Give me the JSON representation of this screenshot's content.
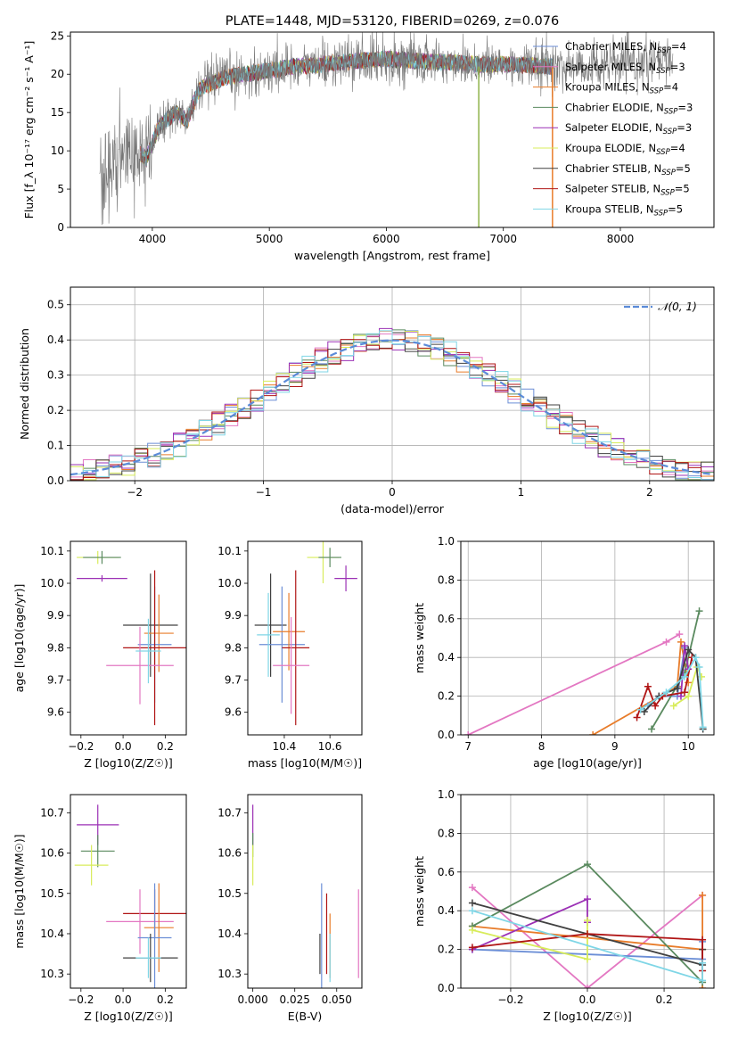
{
  "colors": {
    "Chabrier MILES": "#6b8ed6",
    "Salpeter MILES": "#e377c2",
    "Kroupa MILES": "#e87c2a",
    "Chabrier ELODIE": "#5a8a5f",
    "Salpeter ELODIE": "#9b30b5",
    "Kroupa ELODIE": "#d8ec5b",
    "Chabrier STELIB": "#404040",
    "Salpeter STELIB": "#b01515",
    "Kroupa STELIB": "#7fd6e6"
  },
  "chart_data": [
    {
      "id": "spectrum",
      "type": "line",
      "title": "PLATE=1448, MJD=53120, FIBERID=0269, z=0.076",
      "xlabel": "wavelength [Angstrom, rest frame]",
      "ylabel": "Flux [f_λ 10⁻¹⁷ erg cm⁻² s⁻¹ A⁻¹]",
      "xlim": [
        3300,
        8800
      ],
      "ylim": [
        0,
        25.5
      ],
      "xticks": [
        4000,
        5000,
        6000,
        7000,
        8000
      ],
      "yticks": [
        0,
        5,
        10,
        15,
        20,
        25
      ],
      "legend_position": "right",
      "legend": [
        "Chabrier MILES, N_SSP=4",
        "Salpeter MILES, N_SSP=3",
        "Kroupa MILES, N_SSP=4",
        "Chabrier ELODIE, N_SSP=3",
        "Salpeter ELODIE, N_SSP=3",
        "Kroupa ELODIE, N_SSP=4",
        "Chabrier STELIB, N_SSP=5",
        "Salpeter STELIB, N_SSP=5",
        "Kroupa STELIB, N_SSP=5"
      ],
      "continuum_x": [
        3550,
        3700,
        3850,
        3950,
        4050,
        4200,
        4300,
        4400,
        4600,
        4800,
        5000,
        5200,
        5400,
        5600,
        5800,
        6000,
        6200,
        6400,
        6600,
        6800,
        7000,
        7200,
        7400,
        7600,
        7800,
        8000,
        8200,
        8450
      ],
      "continuum_y": [
        6,
        8.5,
        10,
        9,
        13,
        15,
        14,
        18,
        19.5,
        20,
        20.5,
        21,
        21.2,
        21.5,
        21.8,
        22,
        21.8,
        21.6,
        21.5,
        21.3,
        21.3,
        21.2,
        21,
        21,
        21.2,
        21.3,
        21.5,
        21.8
      ],
      "data_range": [
        3550,
        8450
      ],
      "model_range": [
        3900,
        7420
      ]
    },
    {
      "id": "residuals",
      "type": "line",
      "xlabel": "(data-model)/error",
      "ylabel": "Normed distribution",
      "xlim": [
        -2.5,
        2.5
      ],
      "ylim": [
        0,
        0.55
      ],
      "xticks": [
        -2,
        -1,
        0,
        1,
        2
      ],
      "yticks": [
        0.0,
        0.1,
        0.2,
        0.3,
        0.4,
        0.5
      ],
      "grid": true,
      "legend": [
        "𝒩(0, 1)"
      ],
      "legend_position": "top-right",
      "gaussian": {
        "mean": 0,
        "sigma": 1
      }
    },
    {
      "id": "age_vs_z",
      "type": "scatter",
      "xlabel": "Z [log10(Z/Z☉)]",
      "ylabel": "age  [log10(age/yr)]",
      "xlim": [
        -0.25,
        0.3
      ],
      "ylim": [
        9.53,
        10.13
      ],
      "xticks": [
        -0.2,
        0.0,
        0.2
      ],
      "yticks": [
        9.6,
        9.7,
        9.8,
        9.9,
        10.0,
        10.1
      ],
      "points": [
        {
          "model": "Kroupa ELODIE",
          "x": -0.12,
          "y": 10.08,
          "xerr": 0.1,
          "yerr": 0.02
        },
        {
          "model": "Chabrier ELODIE",
          "x": -0.1,
          "y": 10.08,
          "xerr": 0.09,
          "yerr": 0.02
        },
        {
          "model": "Salpeter ELODIE",
          "x": -0.1,
          "y": 10.015,
          "xerr": 0.12,
          "yerr": 0.01
        },
        {
          "model": "Chabrier STELIB",
          "x": 0.13,
          "y": 9.87,
          "xerr": 0.13,
          "yerr": 0.16
        },
        {
          "model": "Kroupa MILES",
          "x": 0.17,
          "y": 9.845,
          "xerr": 0.07,
          "yerr": 0.12
        },
        {
          "model": "Chabrier MILES",
          "x": 0.15,
          "y": 9.81,
          "xerr": 0.08,
          "yerr": 0.18
        },
        {
          "model": "Salpeter STELIB",
          "x": 0.15,
          "y": 9.8,
          "xerr": 0.15,
          "yerr": 0.24
        },
        {
          "model": "Salpeter MILES",
          "x": 0.08,
          "y": 9.745,
          "xerr": 0.16,
          "yerr": 0.12
        },
        {
          "model": "Kroupa STELIB",
          "x": 0.12,
          "y": 9.79,
          "xerr": 0.06,
          "yerr": 0.1
        }
      ]
    },
    {
      "id": "age_vs_mass",
      "type": "scatter",
      "xlabel": "mass [log10(M/M☉)]",
      "xlim": [
        10.24,
        10.74
      ],
      "ylim": [
        9.53,
        10.13
      ],
      "xticks": [
        10.4,
        10.6
      ],
      "yticks": [
        9.6,
        9.7,
        9.8,
        9.9,
        10.0,
        10.1
      ],
      "points": [
        {
          "model": "Kroupa ELODIE",
          "x": 10.57,
          "y": 10.08,
          "xerr": 0.07,
          "yerr": 0.08
        },
        {
          "model": "Chabrier ELODIE",
          "x": 10.6,
          "y": 10.08,
          "xerr": 0.05,
          "yerr": 0.03
        },
        {
          "model": "Salpeter ELODIE",
          "x": 10.67,
          "y": 10.015,
          "xerr": 0.05,
          "yerr": 0.04
        },
        {
          "model": "Chabrier STELIB",
          "x": 10.34,
          "y": 9.87,
          "xerr": 0.07,
          "yerr": 0.16
        },
        {
          "model": "Chabrier MILES",
          "x": 10.39,
          "y": 9.81,
          "xerr": 0.1,
          "yerr": 0.18
        },
        {
          "model": "Kroupa MILES",
          "x": 10.42,
          "y": 9.85,
          "xerr": 0.07,
          "yerr": 0.12
        },
        {
          "model": "Salpeter STELIB",
          "x": 10.45,
          "y": 9.8,
          "xerr": 0.06,
          "yerr": 0.24
        },
        {
          "model": "Salpeter MILES",
          "x": 10.43,
          "y": 9.745,
          "xerr": 0.08,
          "yerr": 0.15
        },
        {
          "model": "Kroupa STELIB",
          "x": 10.33,
          "y": 9.84,
          "xerr": 0.05,
          "yerr": 0.13
        }
      ]
    },
    {
      "id": "weight_vs_age",
      "type": "line",
      "xlabel": "age  [log10(age/yr)]",
      "ylabel": "mass weight",
      "xlim": [
        6.9,
        10.35
      ],
      "ylim": [
        0,
        1.0
      ],
      "xticks": [
        7,
        8,
        9,
        10
      ],
      "yticks": [
        0.0,
        0.2,
        0.4,
        0.6,
        0.8,
        1.0
      ],
      "grid": true,
      "series": [
        {
          "model": "Salpeter MILES",
          "x": [
            7.0,
            9.7,
            9.88
          ],
          "y": [
            0.0,
            0.48,
            0.52
          ]
        },
        {
          "model": "Kroupa MILES",
          "x": [
            8.7,
            9.85,
            9.9,
            10.0
          ],
          "y": [
            0.0,
            0.25,
            0.48,
            0.27
          ]
        },
        {
          "model": "Chabrier MILES",
          "x": [
            9.45,
            9.6,
            9.85,
            9.95
          ],
          "y": [
            0.15,
            0.2,
            0.2,
            0.45
          ]
        },
        {
          "model": "Chabrier ELODIE",
          "x": [
            9.5,
            9.95,
            10.15
          ],
          "y": [
            0.03,
            0.32,
            0.64
          ]
        },
        {
          "model": "Salpeter ELODIE",
          "x": [
            9.9,
            9.95,
            10.0
          ],
          "y": [
            0.2,
            0.46,
            0.34
          ]
        },
        {
          "model": "Kroupa ELODIE",
          "x": [
            9.8,
            10.0,
            10.12,
            10.18
          ],
          "y": [
            0.15,
            0.2,
            0.35,
            0.3
          ]
        },
        {
          "model": "Chabrier STELIB",
          "x": [
            9.4,
            9.6,
            9.85,
            10.0,
            10.1,
            10.2
          ],
          "y": [
            0.12,
            0.2,
            0.24,
            0.44,
            0.4,
            0.03
          ]
        },
        {
          "model": "Salpeter STELIB",
          "x": [
            9.3,
            9.45,
            9.55,
            9.65,
            9.95,
            10.05
          ],
          "y": [
            0.09,
            0.25,
            0.15,
            0.2,
            0.22,
            0.4
          ]
        },
        {
          "model": "Kroupa STELIB",
          "x": [
            9.35,
            9.7,
            9.95,
            10.1,
            10.15,
            10.2
          ],
          "y": [
            0.13,
            0.22,
            0.3,
            0.4,
            0.35,
            0.04
          ]
        }
      ]
    },
    {
      "id": "mass_vs_z",
      "type": "scatter",
      "xlabel": "Z [log10(Z/Z☉)]",
      "ylabel": "mass [log10(M/M☉)]",
      "xlim": [
        -0.25,
        0.3
      ],
      "ylim": [
        10.265,
        10.745
      ],
      "xticks": [
        -0.2,
        0.0,
        0.2
      ],
      "yticks": [
        10.3,
        10.4,
        10.5,
        10.6,
        10.7
      ],
      "points": [
        {
          "model": "Salpeter ELODIE",
          "x": -0.12,
          "y": 10.67,
          "xerr": 0.1,
          "yerr": 0.05
        },
        {
          "model": "Chabrier ELODIE",
          "x": -0.12,
          "y": 10.605,
          "xerr": 0.08,
          "yerr": 0.04
        },
        {
          "model": "Kroupa ELODIE",
          "x": -0.15,
          "y": 10.57,
          "xerr": 0.08,
          "yerr": 0.05
        },
        {
          "model": "Salpeter STELIB",
          "x": 0.15,
          "y": 10.45,
          "xerr": 0.15,
          "yerr": 0.06
        },
        {
          "model": "Salpeter MILES",
          "x": 0.08,
          "y": 10.43,
          "xerr": 0.16,
          "yerr": 0.08
        },
        {
          "model": "Kroupa MILES",
          "x": 0.17,
          "y": 10.415,
          "xerr": 0.07,
          "yerr": 0.11
        },
        {
          "model": "Chabrier MILES",
          "x": 0.15,
          "y": 10.39,
          "xerr": 0.08,
          "yerr": 0.135
        },
        {
          "model": "Chabrier STELIB",
          "x": 0.13,
          "y": 10.34,
          "xerr": 0.13,
          "yerr": 0.06
        },
        {
          "model": "Kroupa STELIB",
          "x": 0.12,
          "y": 10.34,
          "xerr": 0.06,
          "yerr": 0.05
        }
      ]
    },
    {
      "id": "mass_vs_ebv",
      "type": "scatter",
      "xlabel": "E(B-V)",
      "xlim": [
        -0.003,
        0.065
      ],
      "ylim": [
        10.265,
        10.745
      ],
      "xticks": [
        0.0,
        0.025,
        0.05
      ],
      "tick_labels": [
        "0.000",
        "0.025",
        "0.050"
      ],
      "yticks": [
        10.3,
        10.4,
        10.5,
        10.6,
        10.7
      ],
      "points": [
        {
          "model": "Salpeter ELODIE",
          "x": 0.0,
          "y": 10.67,
          "xerr": 0.0,
          "yerr": 0.05
        },
        {
          "model": "Chabrier ELODIE",
          "x": 0.0,
          "y": 10.62,
          "xerr": 0.0,
          "yerr": 0.03
        },
        {
          "model": "Kroupa ELODIE",
          "x": 0.0,
          "y": 10.57,
          "xerr": 0.0,
          "yerr": 0.05
        },
        {
          "model": "Chabrier STELIB",
          "x": 0.04,
          "y": 10.35,
          "xerr": 0.0,
          "yerr": 0.05
        },
        {
          "model": "Chabrier MILES",
          "x": 0.041,
          "y": 10.39,
          "xerr": 0.0,
          "yerr": 0.135
        },
        {
          "model": "Salpeter STELIB",
          "x": 0.044,
          "y": 10.4,
          "xerr": 0.0,
          "yerr": 0.1
        },
        {
          "model": "Kroupa MILES",
          "x": 0.046,
          "y": 10.37,
          "xerr": 0.0,
          "yerr": 0.08
        },
        {
          "model": "Kroupa STELIB",
          "x": 0.046,
          "y": 10.34,
          "xerr": 0.0,
          "yerr": 0.06
        },
        {
          "model": "Salpeter MILES",
          "x": 0.063,
          "y": 10.4,
          "xerr": 0.0,
          "yerr": 0.11
        }
      ]
    },
    {
      "id": "weight_vs_z",
      "type": "line",
      "xlabel": "Z [log10(Z/Z☉)]",
      "ylabel": "mass weight",
      "xlim": [
        -0.33,
        0.33
      ],
      "ylim": [
        0,
        1.0
      ],
      "xticks": [
        -0.2,
        0.0,
        0.2
      ],
      "yticks": [
        0.0,
        0.2,
        0.4,
        0.6,
        0.8,
        1.0
      ],
      "grid": true,
      "series": [
        {
          "model": "Salpeter MILES",
          "x": [
            -0.3,
            0.0,
            0.3
          ],
          "y": [
            0.52,
            0.0,
            0.48
          ]
        },
        {
          "model": "Kroupa MILES",
          "x": [
            -0.3,
            0.3,
            0.3,
            0.3
          ],
          "y": [
            0.32,
            0.2,
            0.48,
            0.0
          ]
        },
        {
          "model": "Chabrier MILES",
          "x": [
            -0.3,
            0.3,
            0.3
          ],
          "y": [
            0.2,
            0.15,
            0.24
          ]
        },
        {
          "model": "Chabrier ELODIE",
          "x": [
            -0.3,
            0.0,
            0.3
          ],
          "y": [
            0.32,
            0.64,
            0.03
          ]
        },
        {
          "model": "Salpeter ELODIE",
          "x": [
            -0.3,
            0.0,
            0.0
          ],
          "y": [
            0.2,
            0.46,
            0.34
          ]
        },
        {
          "model": "Kroupa ELODIE",
          "x": [
            -0.3,
            0.0,
            0.0
          ],
          "y": [
            0.3,
            0.15,
            0.35
          ]
        },
        {
          "model": "Chabrier STELIB",
          "x": [
            -0.3,
            0.3,
            0.3
          ],
          "y": [
            0.44,
            0.12,
            0.2
          ]
        },
        {
          "model": "Salpeter STELIB",
          "x": [
            -0.3,
            0.0,
            0.3,
            0.3
          ],
          "y": [
            0.21,
            0.28,
            0.25,
            0.09
          ]
        },
        {
          "model": "Kroupa STELIB",
          "x": [
            -0.3,
            0.3,
            0.3
          ],
          "y": [
            0.4,
            0.04,
            0.13
          ]
        }
      ]
    }
  ]
}
